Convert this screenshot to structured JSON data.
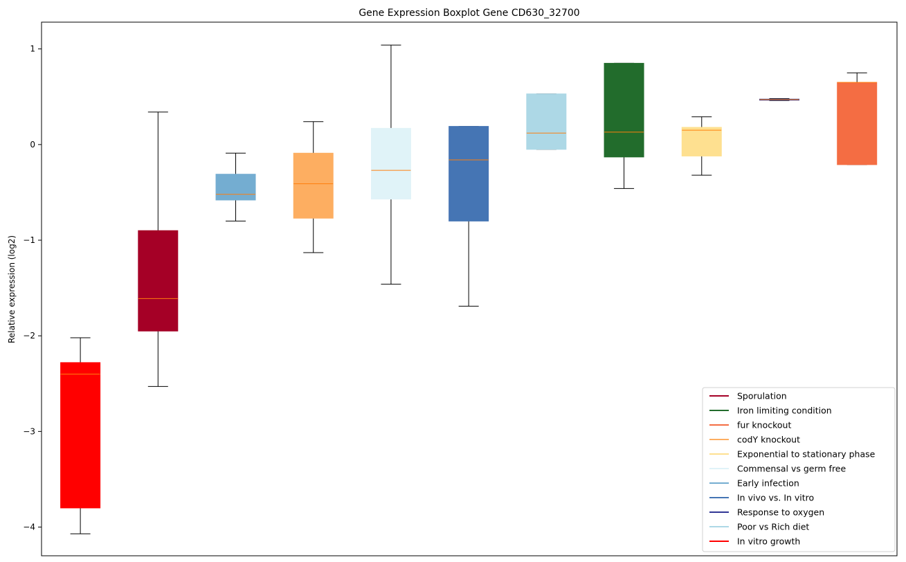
{
  "chart_data": {
    "type": "boxplot",
    "title": "Gene Expression Boxplot Gene CD630_32700",
    "ylabel": "Relative expression (log2)",
    "xlabel": "",
    "ylim": [
      -4.3,
      1.28
    ],
    "yticks": [
      {
        "value": 1,
        "label": "1"
      },
      {
        "value": 0,
        "label": "0"
      },
      {
        "value": -1,
        "label": "−1"
      },
      {
        "value": -2,
        "label": "−2"
      },
      {
        "value": -3,
        "label": "−3"
      },
      {
        "value": -4,
        "label": "−4"
      }
    ],
    "grid": false,
    "legend_position": "lower-right",
    "median_color": "#ff7f0e",
    "boxes": [
      {
        "name": "In vitro growth",
        "color": "#ff0000",
        "whisker_low": -4.07,
        "q1": -3.8,
        "median": -2.4,
        "q3": -2.28,
        "whisker_high": -2.02
      },
      {
        "name": "Sporulation",
        "color": "#a50026",
        "whisker_low": -2.53,
        "q1": -1.95,
        "median": -1.61,
        "q3": -0.9,
        "whisker_high": 0.34
      },
      {
        "name": "Early infection",
        "color": "#74add1",
        "whisker_low": -0.8,
        "q1": -0.58,
        "median": -0.52,
        "q3": -0.31,
        "whisker_high": -0.09
      },
      {
        "name": "codY knockout",
        "color": "#fdae61",
        "whisker_low": -1.13,
        "q1": -0.77,
        "median": -0.41,
        "q3": -0.09,
        "whisker_high": 0.24
      },
      {
        "name": "Commensal vs germ free",
        "color": "#e0f3f8",
        "whisker_low": -1.46,
        "q1": -0.57,
        "median": -0.27,
        "q3": 0.17,
        "whisker_high": 1.04
      },
      {
        "name": "In vivo vs. In vitro",
        "color": "#4575b4",
        "whisker_low": -1.69,
        "q1": -0.8,
        "median": -0.16,
        "q3": 0.19,
        "whisker_high": 0.19
      },
      {
        "name": "Poor vs Rich diet",
        "color": "#add8e6",
        "whisker_low": -0.05,
        "q1": -0.05,
        "median": 0.12,
        "q3": 0.53,
        "whisker_high": 0.53
      },
      {
        "name": "Iron limiting condition",
        "color": "#226c2c",
        "whisker_low": -0.46,
        "q1": -0.13,
        "median": 0.13,
        "q3": 0.85,
        "whisker_high": 0.85
      },
      {
        "name": "Exponential to stationary phase",
        "color": "#fee090",
        "whisker_low": -0.32,
        "q1": -0.12,
        "median": 0.15,
        "q3": 0.18,
        "whisker_high": 0.29
      },
      {
        "name": "Response to oxygen",
        "color": "#313695",
        "whisker_low": 0.46,
        "q1": 0.465,
        "median": 0.47,
        "q3": 0.475,
        "whisker_high": 0.48
      },
      {
        "name": "fur knockout",
        "color": "#f46d43",
        "whisker_low": -0.21,
        "q1": -0.21,
        "median": 0.65,
        "q3": 0.65,
        "whisker_high": 0.75
      }
    ],
    "legend": [
      {
        "label": "Sporulation",
        "color": "#a50026"
      },
      {
        "label": "Iron limiting condition",
        "color": "#226c2c"
      },
      {
        "label": "fur knockout",
        "color": "#f46d43"
      },
      {
        "label": "codY knockout",
        "color": "#fdae61"
      },
      {
        "label": "Exponential to stationary phase",
        "color": "#fee090"
      },
      {
        "label": "Commensal vs germ free",
        "color": "#e0f3f8"
      },
      {
        "label": "Early infection",
        "color": "#74add1"
      },
      {
        "label": "In vivo vs. In vitro",
        "color": "#4575b4"
      },
      {
        "label": "Response to oxygen",
        "color": "#313695"
      },
      {
        "label": "Poor vs Rich diet",
        "color": "#add8e6"
      },
      {
        "label": "In vitro growth",
        "color": "#ff0000"
      }
    ]
  }
}
